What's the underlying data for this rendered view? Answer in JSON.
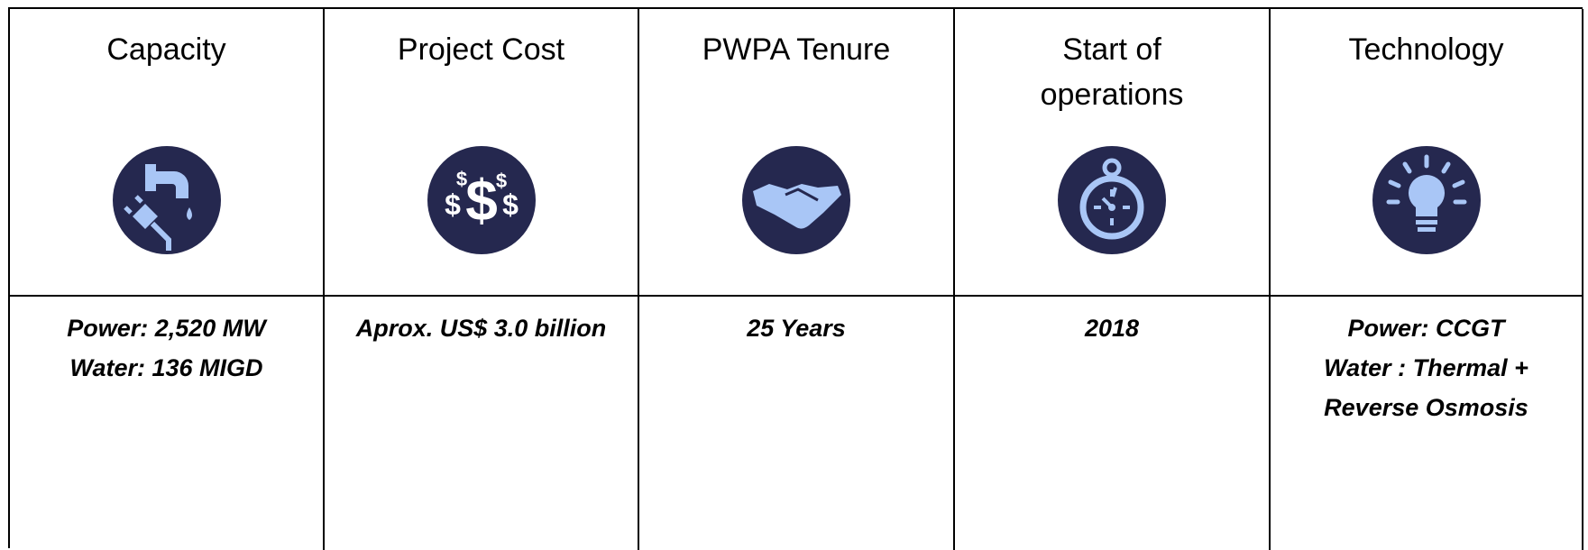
{
  "columns": [
    {
      "header": [
        "Capacity"
      ],
      "value": [
        "Power: 2,520 MW",
        "Water: 136 MIGD"
      ]
    },
    {
      "header": [
        "Project Cost"
      ],
      "value": [
        "Aprox. US$ 3.0 billion"
      ]
    },
    {
      "header": [
        "PWPA Tenure"
      ],
      "value": [
        "25 Years"
      ]
    },
    {
      "header": [
        "Start of",
        "operations"
      ],
      "value": [
        "2018"
      ]
    },
    {
      "header": [
        "Technology"
      ],
      "value": [
        "Power: CCGT",
        "Water : Thermal +",
        "Reverse Osmosis"
      ]
    }
  ]
}
